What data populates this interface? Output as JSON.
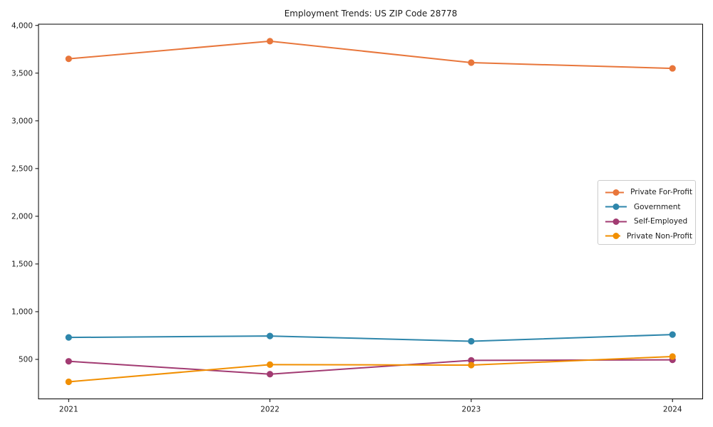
{
  "chart_data": {
    "type": "line",
    "title": "Employment Trends: US ZIP Code 28778",
    "xlabel": "",
    "ylabel": "",
    "x": [
      "2021",
      "2022",
      "2023",
      "2024"
    ],
    "series": [
      {
        "name": "Private For-Profit",
        "color": "#E8763B",
        "values": [
          3650,
          3835,
          3610,
          3550
        ]
      },
      {
        "name": "Government",
        "color": "#2E86AB",
        "values": [
          730,
          745,
          690,
          760
        ]
      },
      {
        "name": "Self-Employed",
        "color": "#A23B72",
        "values": [
          480,
          345,
          490,
          495
        ]
      },
      {
        "name": "Private Non-Profit",
        "color": "#F18F01",
        "values": [
          265,
          445,
          440,
          530
        ]
      }
    ],
    "ylim": [
      86,
      4013
    ],
    "yticks": [
      500,
      1000,
      1500,
      2000,
      2500,
      3000,
      3500,
      4000
    ],
    "ytick_labels": [
      "500",
      "1,000",
      "1,500",
      "2,000",
      "2,500",
      "3,000",
      "3,500",
      "4,000"
    ],
    "grid": false,
    "legend_position": "center right",
    "marker": "circle",
    "line_width": 2,
    "marker_radius": 4.6,
    "axis_color": "#000000",
    "text_color": "#1a1a1a",
    "background_color": "#ffffff"
  }
}
